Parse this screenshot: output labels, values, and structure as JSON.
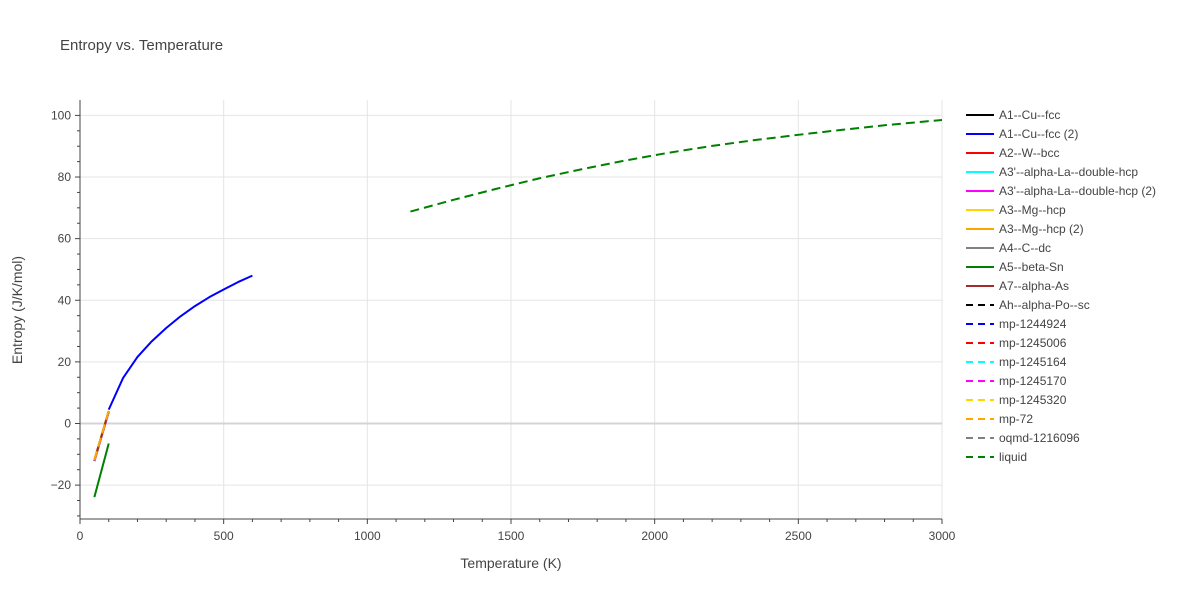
{
  "chart_data": {
    "type": "line",
    "title": "Entropy vs. Temperature",
    "xlabel": "Temperature (K)",
    "ylabel": "Entropy (J/K/mol)",
    "xlim": [
      0,
      3000
    ],
    "ylim": [
      -31,
      105
    ],
    "xticks": [
      0,
      500,
      1000,
      1500,
      2000,
      2500,
      3000
    ],
    "yticks": [
      -20,
      0,
      20,
      40,
      60,
      80,
      100
    ],
    "grid": true,
    "legend_position": "right",
    "series": [
      {
        "name": "A1--Cu--fcc",
        "color": "#000000",
        "dash": "solid",
        "x": [
          50,
          100
        ],
        "y": [
          -12.2,
          3.8
        ]
      },
      {
        "name": "A1--Cu--fcc (2)",
        "color": "#0000ff",
        "dash": "solid",
        "x": [
          100,
          150,
          200,
          250,
          300,
          350,
          400,
          450,
          500,
          550,
          600
        ],
        "y": [
          4.5,
          14.8,
          21.6,
          26.7,
          31.0,
          34.8,
          38.1,
          41.0,
          43.5,
          45.9,
          48.0
        ]
      },
      {
        "name": "A2--W--bcc",
        "color": "#ff0000",
        "dash": "solid",
        "x": [
          50,
          100
        ],
        "y": [
          -12.0,
          4.0
        ]
      },
      {
        "name": "A3'--alpha-La--double-hcp",
        "color": "#00ffff",
        "dash": "solid",
        "x": [
          50,
          100
        ],
        "y": [
          -12.1,
          3.9
        ]
      },
      {
        "name": "A3'--alpha-La--double-hcp (2)",
        "color": "#ff00ff",
        "dash": "solid",
        "x": [
          50,
          100
        ],
        "y": [
          -12.2,
          3.8
        ]
      },
      {
        "name": "A3--Mg--hcp",
        "color": "#ffd700",
        "dash": "solid",
        "x": [
          50,
          100
        ],
        "y": [
          -12.0,
          4.1
        ]
      },
      {
        "name": "A3--Mg--hcp (2)",
        "color": "#ffa500",
        "dash": "solid",
        "x": [
          50,
          100
        ],
        "y": [
          -11.9,
          4.1
        ]
      },
      {
        "name": "A4--C--dc",
        "color": "#808080",
        "dash": "solid",
        "x": [
          50,
          100
        ],
        "y": [
          -12.1,
          3.9
        ]
      },
      {
        "name": "A5--beta-Sn",
        "color": "#008000",
        "dash": "solid",
        "x": [
          50,
          100
        ],
        "y": [
          -23.9,
          -6.5
        ]
      },
      {
        "name": "A7--alpha-As",
        "color": "#a52a2a",
        "dash": "solid",
        "x": [
          50,
          100
        ],
        "y": [
          -12.0,
          4.0
        ]
      },
      {
        "name": "Ah--alpha-Po--sc",
        "color": "#000000",
        "dash": "dash",
        "x": [
          50,
          100
        ],
        "y": [
          -12.1,
          3.9
        ]
      },
      {
        "name": "mp-1244924",
        "color": "#0000ff",
        "dash": "dash",
        "x": [
          50,
          100
        ],
        "y": [
          -12.0,
          4.0
        ]
      },
      {
        "name": "mp-1245006",
        "color": "#ff0000",
        "dash": "dash",
        "x": [
          50,
          100
        ],
        "y": [
          -12.1,
          3.9
        ]
      },
      {
        "name": "mp-1245164",
        "color": "#00ffff",
        "dash": "dash",
        "x": [
          50,
          100
        ],
        "y": [
          -12.0,
          4.0
        ]
      },
      {
        "name": "mp-1245170",
        "color": "#ff00ff",
        "dash": "dash",
        "x": [
          50,
          100
        ],
        "y": [
          -12.1,
          3.9
        ]
      },
      {
        "name": "mp-1245320",
        "color": "#ffd700",
        "dash": "dash",
        "x": [
          50,
          100
        ],
        "y": [
          -12.0,
          4.0
        ]
      },
      {
        "name": "mp-72",
        "color": "#ffa500",
        "dash": "dash",
        "x": [
          50,
          100
        ],
        "y": [
          -11.8,
          4.2
        ]
      },
      {
        "name": "oqmd-1216096",
        "color": "#808080",
        "dash": "dash",
        "x": [
          50,
          100
        ],
        "y": [
          -12.0,
          4.0
        ]
      },
      {
        "name": "liquid",
        "color": "#008000",
        "dash": "dash",
        "x": [
          1150,
          1300,
          1450,
          1600,
          1750,
          1900,
          2050,
          2200,
          2350,
          2500,
          2650,
          2800,
          2950,
          3000
        ],
        "y": [
          68.8,
          72.6,
          76.2,
          79.6,
          82.6,
          85.4,
          87.9,
          90.1,
          92.0,
          93.7,
          95.3,
          96.8,
          98.1,
          98.5
        ]
      }
    ]
  }
}
